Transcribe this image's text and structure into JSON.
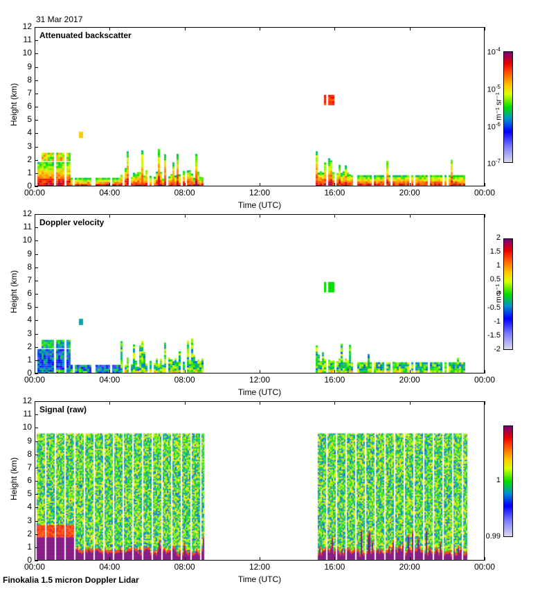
{
  "header": {
    "date": "31 Mar 2017"
  },
  "footer": {
    "instrument": "Finokalia 1.5 micron Doppler Lidar"
  },
  "chart_data": [
    {
      "type": "heatmap",
      "title": "Attenuated backscatter",
      "xlabel": "Time (UTC)",
      "ylabel": "Height (km)",
      "xlim_hours": [
        0,
        24
      ],
      "ylim": [
        0,
        12
      ],
      "x_ticks": [
        "00:00",
        "04:00",
        "08:00",
        "12:00",
        "16:00",
        "20:00",
        "00:00"
      ],
      "y_ticks": [
        "0",
        "1",
        "2",
        "3",
        "4",
        "5",
        "6",
        "7",
        "8",
        "9",
        "10",
        "11",
        "12"
      ],
      "colorbar": {
        "scale": "log",
        "range": [
          1e-07,
          0.0001
        ],
        "ticks": [
          {
            "base": "10",
            "exp": "-4"
          },
          {
            "base": "10",
            "exp": "-5"
          },
          {
            "base": "10",
            "exp": "-6"
          },
          {
            "base": "10",
            "exp": "-7"
          }
        ],
        "unit": "m⁻¹ sr⁻¹"
      },
      "data_segments": [
        {
          "t_start": 0.0,
          "t_end": 1.8,
          "top_km": 1.8,
          "upper_layer_km": [
            2.0,
            2.5
          ],
          "dominant": "orange-red near surface, green aloft"
        },
        {
          "t_start": 1.8,
          "t_end": 4.5,
          "top_km": 0.6,
          "dominant": "red/purple near surface"
        },
        {
          "t_start": 2.3,
          "t_end": 2.4,
          "top_km": 4.1,
          "bottom_km": 3.7,
          "dominant": "yellow-orange isolated"
        },
        {
          "t_start": 4.5,
          "t_end": 9.0,
          "top_km": 2.8,
          "dominant": "mixed red/green/blue columns"
        },
        {
          "t_start": 15.0,
          "t_end": 16.8,
          "top_km": 2.7,
          "dominant": "green columns over red base"
        },
        {
          "t_start": 15.4,
          "t_end": 15.8,
          "top_km": 6.9,
          "bottom_km": 6.2,
          "dominant": "orange-red isolated cloud"
        },
        {
          "t_start": 16.8,
          "t_end": 23.1,
          "top_km": 0.9,
          "dominant": "red/purple near surface"
        }
      ]
    },
    {
      "type": "heatmap",
      "title": "Doppler velocity",
      "xlabel": "Time (UTC)",
      "ylabel": "Height (km)",
      "xlim_hours": [
        0,
        24
      ],
      "ylim": [
        0,
        12
      ],
      "x_ticks": [
        "00:00",
        "04:00",
        "08:00",
        "12:00",
        "16:00",
        "20:00",
        "00:00"
      ],
      "y_ticks": [
        "0",
        "1",
        "2",
        "3",
        "4",
        "5",
        "6",
        "7",
        "8",
        "9",
        "10",
        "11",
        "12"
      ],
      "colorbar": {
        "scale": "linear",
        "range": [
          -2,
          2
        ],
        "ticks": [
          "2",
          "1.5",
          "1",
          "0.5",
          "0",
          "-0.5",
          "-1",
          "-1.5",
          "-2"
        ],
        "unit": "m s⁻¹"
      },
      "data_segments": [
        {
          "t_start": 0.0,
          "t_end": 1.8,
          "top_km": 1.8,
          "upper_layer_km": [
            2.0,
            2.5
          ],
          "dominant": "blue/green"
        },
        {
          "t_start": 1.8,
          "t_end": 4.5,
          "top_km": 0.6,
          "dominant": "blue"
        },
        {
          "t_start": 4.5,
          "t_end": 9.0,
          "top_km": 2.8,
          "dominant": "green/yellow"
        },
        {
          "t_start": 15.0,
          "t_end": 16.8,
          "top_km": 2.7,
          "dominant": "green/yellow"
        },
        {
          "t_start": 15.4,
          "t_end": 15.8,
          "top_km": 6.9,
          "bottom_km": 6.2,
          "dominant": "green"
        },
        {
          "t_start": 16.8,
          "t_end": 23.1,
          "top_km": 0.9,
          "dominant": "yellow/green"
        }
      ]
    },
    {
      "type": "heatmap",
      "title": "Signal (raw)",
      "xlabel": "Time (UTC)",
      "ylabel": "Height (km)",
      "xlim_hours": [
        0,
        24
      ],
      "ylim": [
        0,
        12
      ],
      "x_ticks": [
        "00:00",
        "04:00",
        "08:00",
        "12:00",
        "16:00",
        "20:00",
        "00:00"
      ],
      "y_ticks": [
        "0",
        "1",
        "2",
        "3",
        "4",
        "5",
        "6",
        "7",
        "8",
        "9",
        "10",
        "11",
        "12"
      ],
      "colorbar": {
        "scale": "linear",
        "range": [
          0.99,
          1.01
        ],
        "ticks": [
          "1",
          "0.99"
        ],
        "unit": ""
      },
      "data_segments": [
        {
          "t_start": 0.0,
          "t_end": 9.0,
          "top_km": 9.6,
          "dominant": "green/yellow noise; purple near surface up to ~1.8 km before 02:15, ~0.5 km after"
        },
        {
          "t_start": 15.0,
          "t_end": 23.1,
          "top_km": 9.6,
          "dominant": "green/yellow noise; purple near surface up to ~0.5 km"
        }
      ]
    }
  ]
}
